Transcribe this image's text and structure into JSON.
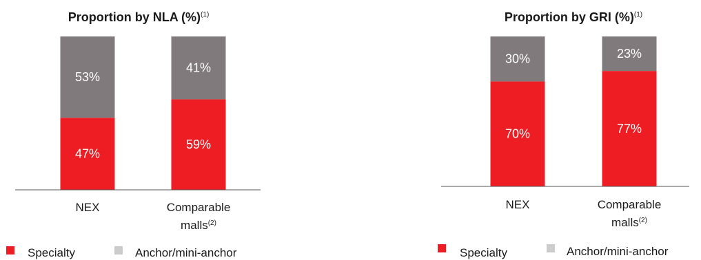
{
  "charts": [
    {
      "title": "Proportion by NLA (%)",
      "title_note": "(1)",
      "chart_data": {
        "type": "bar",
        "stacked": true,
        "categories": [
          "NEX",
          "Comparable malls"
        ],
        "series": [
          {
            "name": "Specialty",
            "values": [
              47,
              59
            ],
            "labels": [
              "47%",
              "59%"
            ],
            "color": "#ee1d23"
          },
          {
            "name": "Anchor/mini-anchor",
            "values": [
              53,
              41
            ],
            "labels": [
              "53%",
              "41%"
            ],
            "color": "#807a7c"
          }
        ],
        "ylim": [
          0,
          100
        ]
      },
      "categories_display": [
        {
          "line1": "NEX",
          "line2": "",
          "note": ""
        },
        {
          "line1": "Comparable",
          "line2": "malls",
          "note": "(2)"
        }
      ],
      "legend": [
        {
          "label": "Specialty",
          "color": "#ee1d23"
        },
        {
          "label": "Anchor/mini-anchor",
          "color": "#cccccc"
        }
      ]
    },
    {
      "title": "Proportion by GRI (%)",
      "title_note": "(1)",
      "chart_data": {
        "type": "bar",
        "stacked": true,
        "categories": [
          "NEX",
          "Comparable malls"
        ],
        "series": [
          {
            "name": "Specialty",
            "values": [
              70,
              77
            ],
            "labels": [
              "70%",
              "77%"
            ],
            "color": "#ee1d23"
          },
          {
            "name": "Anchor/mini-anchor",
            "values": [
              30,
              23
            ],
            "labels": [
              "30%",
              "23%"
            ],
            "color": "#807a7c"
          }
        ],
        "ylim": [
          0,
          100
        ]
      },
      "categories_display": [
        {
          "line1": "NEX",
          "line2": "",
          "note": ""
        },
        {
          "line1": "Comparable",
          "line2": "malls",
          "note": "(2)"
        }
      ],
      "legend": [
        {
          "label": "Specialty",
          "color": "#ee1d23"
        },
        {
          "label": "Anchor/mini-anchor",
          "color": "#cccccc"
        }
      ]
    }
  ]
}
